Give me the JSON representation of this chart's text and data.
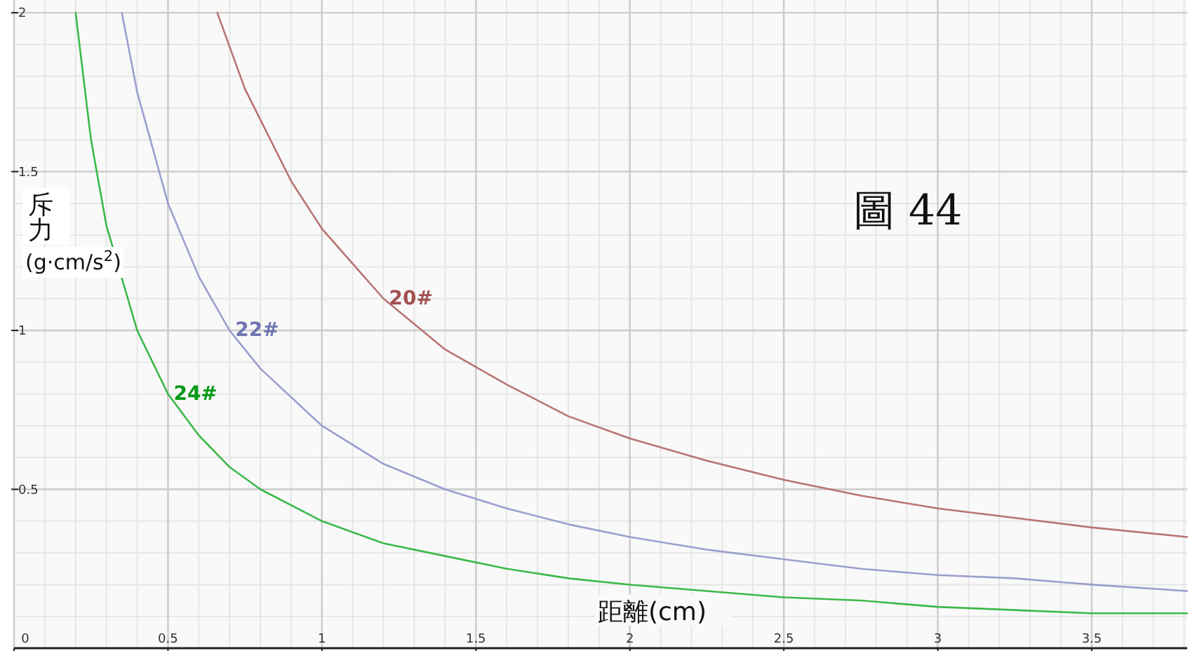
{
  "chart_data": {
    "type": "line",
    "xlabel": "距離(cm)",
    "ylabel": "斥力(g·cm/s$^{2}$)",
    "annotations": [
      "圖 44"
    ],
    "xlim": [
      0,
      3.81
    ],
    "ylim": [
      0,
      2.04
    ],
    "xticks": [
      0,
      0.5,
      1,
      1.5,
      2,
      2.5,
      3,
      3.5
    ],
    "yticks": [
      0.5,
      1,
      1.5,
      2
    ],
    "grid": true,
    "marker": "none",
    "line_style": "solid",
    "series": [
      {
        "name": "20#",
        "color": "#b87474",
        "x": [
          0.66,
          0.75,
          0.9,
          1,
          1.2,
          1.4,
          1.6,
          1.8,
          2,
          2.25,
          2.5,
          2.75,
          3,
          3.25,
          3.5,
          3.81
        ],
        "values": [
          2.0,
          1.76,
          1.47,
          1.32,
          1.1,
          0.94,
          0.83,
          0.73,
          0.66,
          0.59,
          0.53,
          0.48,
          0.44,
          0.41,
          0.38,
          0.35
        ]
      },
      {
        "name": "22#",
        "color": "#9a9fd0",
        "x": [
          0.35,
          0.4,
          0.5,
          0.6,
          0.7,
          0.8,
          1,
          1.2,
          1.4,
          1.6,
          1.8,
          2,
          2.25,
          2.5,
          2.75,
          3,
          3.25,
          3.5,
          3.81
        ],
        "values": [
          2.0,
          1.75,
          1.4,
          1.17,
          1.0,
          0.88,
          0.7,
          0.58,
          0.5,
          0.44,
          0.39,
          0.35,
          0.31,
          0.28,
          0.25,
          0.23,
          0.22,
          0.2,
          0.18
        ]
      },
      {
        "name": "24#",
        "color": "#3cb94a",
        "x": [
          0.2,
          0.25,
          0.3,
          0.4,
          0.5,
          0.6,
          0.7,
          0.8,
          1,
          1.2,
          1.4,
          1.6,
          1.8,
          2,
          2.25,
          2.5,
          2.75,
          3,
          3.25,
          3.5,
          3.81
        ],
        "values": [
          2.0,
          1.6,
          1.33,
          1.0,
          0.8,
          0.67,
          0.57,
          0.5,
          0.4,
          0.33,
          0.29,
          0.25,
          0.22,
          0.2,
          0.18,
          0.16,
          0.15,
          0.13,
          0.12,
          0.11,
          0.11
        ]
      }
    ]
  }
}
